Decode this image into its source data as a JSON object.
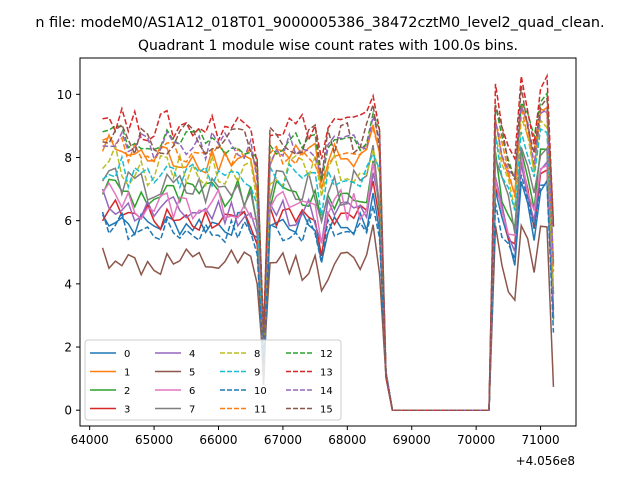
{
  "chart_data": {
    "type": "line",
    "suptitle": "n file: modeM0/AS1A12_018T01_9000005386_38472cztM0_level2_quad_clean.",
    "title": "Quadrant 1 module wise count rates with 100.0s bins.",
    "xlabel": "",
    "ylabel": "",
    "x_offset_label": "+4.056e8",
    "xlim": [
      63850,
      71550
    ],
    "ylim": [
      -0.5,
      11.15
    ],
    "x_ticks": [
      64000,
      65000,
      66000,
      67000,
      68000,
      69000,
      70000,
      71000
    ],
    "x_tick_labels": [
      "64000",
      "65000",
      "66000",
      "67000",
      "68000",
      "69000",
      "70000",
      "71000"
    ],
    "y_ticks": [
      0,
      2,
      4,
      6,
      8,
      10
    ],
    "y_tick_labels": [
      "0",
      "2",
      "4",
      "6",
      "8",
      "10"
    ],
    "grid": false,
    "legend_position": "lower-left",
    "gap": [
      68750,
      70150
    ],
    "series": [
      {
        "name": "0",
        "color": "#1f77b4",
        "dash": "solid",
        "base": 5.9,
        "amp": 0.4,
        "dip": 0.8
      },
      {
        "name": "1",
        "color": "#ff7f0e",
        "dash": "solid",
        "base": 8.0,
        "amp": 0.5,
        "dip": 2.0
      },
      {
        "name": "2",
        "color": "#2ca02c",
        "dash": "solid",
        "base": 6.8,
        "amp": 0.5,
        "dip": 1.8
      },
      {
        "name": "3",
        "color": "#d62728",
        "dash": "solid",
        "base": 6.1,
        "amp": 0.4,
        "dip": 1.6
      },
      {
        "name": "4",
        "color": "#9467bd",
        "dash": "solid",
        "base": 6.3,
        "amp": 0.5,
        "dip": 1.7
      },
      {
        "name": "5",
        "color": "#8c564b",
        "dash": "solid",
        "base": 4.6,
        "amp": 0.5,
        "dip": 1.4
      },
      {
        "name": "6",
        "color": "#e377c2",
        "dash": "solid",
        "base": 6.5,
        "amp": 0.5,
        "dip": 1.8
      },
      {
        "name": "7",
        "color": "#7f7f7f",
        "dash": "solid",
        "base": 7.0,
        "amp": 0.6,
        "dip": 0.8
      },
      {
        "name": "8",
        "color": "#bcbd22",
        "dash": "dashed",
        "base": 7.6,
        "amp": 0.5,
        "dip": 2.0
      },
      {
        "name": "9",
        "color": "#17becf",
        "dash": "dashed",
        "base": 7.4,
        "amp": 0.4,
        "dip": 2.0
      },
      {
        "name": "10",
        "color": "#1f77b4",
        "dash": "dashed",
        "base": 5.7,
        "amp": 0.4,
        "dip": 1.5
      },
      {
        "name": "11",
        "color": "#ff7f0e",
        "dash": "dashed",
        "base": 8.1,
        "amp": 0.4,
        "dip": 2.2
      },
      {
        "name": "12",
        "color": "#2ca02c",
        "dash": "dashed",
        "base": 8.5,
        "amp": 0.4,
        "dip": 2.3
      },
      {
        "name": "13",
        "color": "#d62728",
        "dash": "dashed",
        "base": 9.0,
        "amp": 0.5,
        "dip": 2.5
      },
      {
        "name": "14",
        "color": "#9467bd",
        "dash": "dashed",
        "base": 8.3,
        "amp": 0.5,
        "dip": 2.2
      },
      {
        "name": "15",
        "color": "#8c564b",
        "dash": "dashed",
        "base": 8.6,
        "amp": 0.5,
        "dip": 2.3
      }
    ]
  }
}
